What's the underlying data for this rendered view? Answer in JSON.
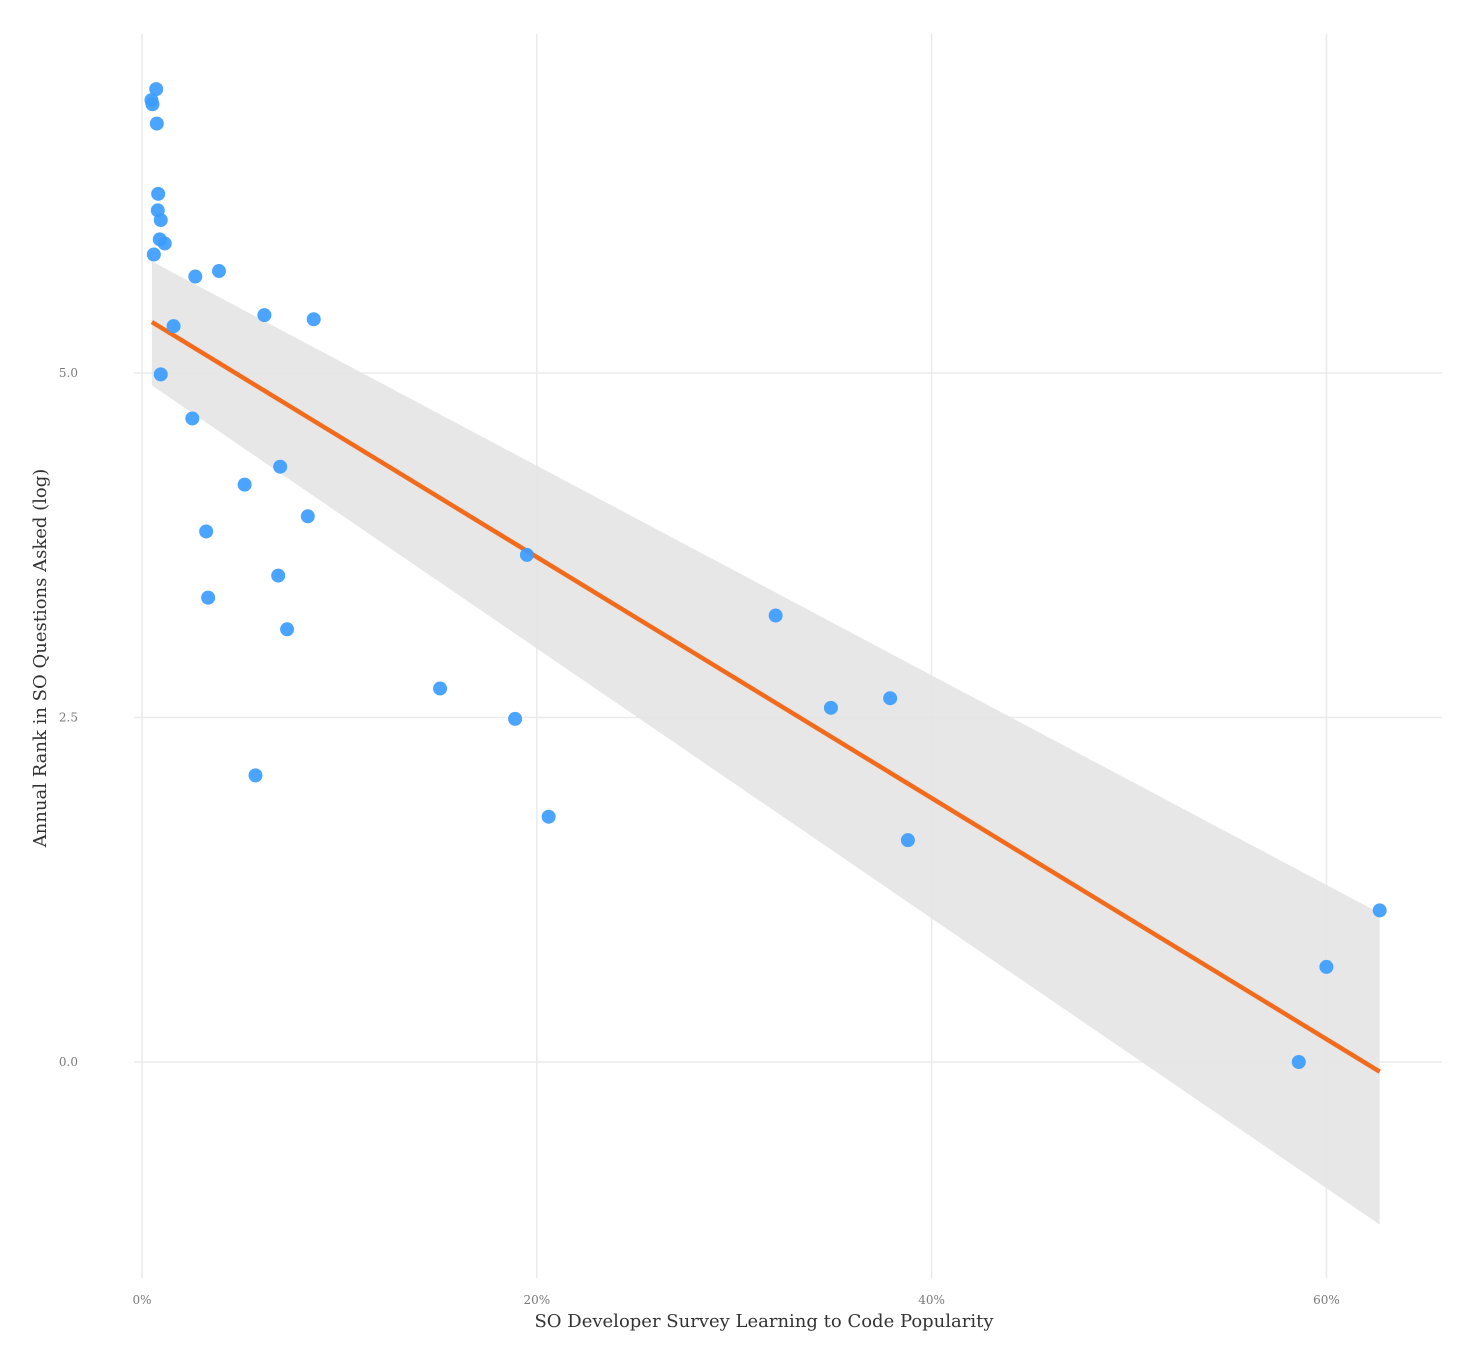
{
  "chart_data": {
    "type": "scatter",
    "xlabel": "SO Developer Survey Learning to Code Popularity",
    "ylabel": "Annual Rank in SO Questions Asked (log)",
    "xlim": [
      -0.0075,
      0.655
    ],
    "ylim": [
      -1.58,
      7.45
    ],
    "x_ticks": [
      {
        "value": 0.0,
        "label": "0%"
      },
      {
        "value": 0.2,
        "label": "20%"
      },
      {
        "value": 0.4,
        "label": "40%"
      },
      {
        "value": 0.6,
        "label": "60%"
      }
    ],
    "y_ticks": [
      {
        "value": 0.0,
        "label": "0.0"
      },
      {
        "value": 2.5,
        "label": "2.5"
      },
      {
        "value": 5.0,
        "label": "5.0"
      }
    ],
    "grid": true,
    "legend": "none",
    "colors": {
      "points": "#3c9cff",
      "trend_line": "#f26b1d",
      "confidence_band": "#e4e4e4",
      "grid": "#ebebeb"
    },
    "points": [
      {
        "x": 0.0048,
        "y": 6.98
      },
      {
        "x": 0.0053,
        "y": 6.95
      },
      {
        "x": 0.0072,
        "y": 7.06
      },
      {
        "x": 0.0075,
        "y": 6.81
      },
      {
        "x": 0.0082,
        "y": 6.3
      },
      {
        "x": 0.008,
        "y": 6.18
      },
      {
        "x": 0.0095,
        "y": 6.11
      },
      {
        "x": 0.009,
        "y": 5.97
      },
      {
        "x": 0.0115,
        "y": 5.94
      },
      {
        "x": 0.006,
        "y": 5.86
      },
      {
        "x": 0.027,
        "y": 5.7
      },
      {
        "x": 0.039,
        "y": 5.74
      },
      {
        "x": 0.062,
        "y": 5.42
      },
      {
        "x": 0.087,
        "y": 5.39
      },
      {
        "x": 0.016,
        "y": 5.34
      },
      {
        "x": 0.0095,
        "y": 4.99
      },
      {
        "x": 0.0255,
        "y": 4.67
      },
      {
        "x": 0.07,
        "y": 4.32
      },
      {
        "x": 0.052,
        "y": 4.19
      },
      {
        "x": 0.084,
        "y": 3.96
      },
      {
        "x": 0.0325,
        "y": 3.85
      },
      {
        "x": 0.195,
        "y": 3.68
      },
      {
        "x": 0.069,
        "y": 3.53
      },
      {
        "x": 0.0335,
        "y": 3.37
      },
      {
        "x": 0.0735,
        "y": 3.14
      },
      {
        "x": 0.321,
        "y": 3.24
      },
      {
        "x": 0.151,
        "y": 2.71
      },
      {
        "x": 0.379,
        "y": 2.64
      },
      {
        "x": 0.349,
        "y": 2.57
      },
      {
        "x": 0.189,
        "y": 2.49
      },
      {
        "x": 0.0575,
        "y": 2.08
      },
      {
        "x": 0.206,
        "y": 1.78
      },
      {
        "x": 0.388,
        "y": 1.61
      },
      {
        "x": 0.627,
        "y": 1.1
      },
      {
        "x": 0.6,
        "y": 0.69
      },
      {
        "x": 0.586,
        "y": 0.0
      }
    ],
    "trend_line": {
      "x": [
        0.005,
        0.627
      ],
      "y": [
        5.37,
        -0.07
      ]
    },
    "confidence_band": {
      "x": [
        0.005,
        0.627
      ],
      "upper": [
        5.81,
        1.08
      ],
      "lower": [
        4.91,
        -1.18
      ]
    }
  }
}
